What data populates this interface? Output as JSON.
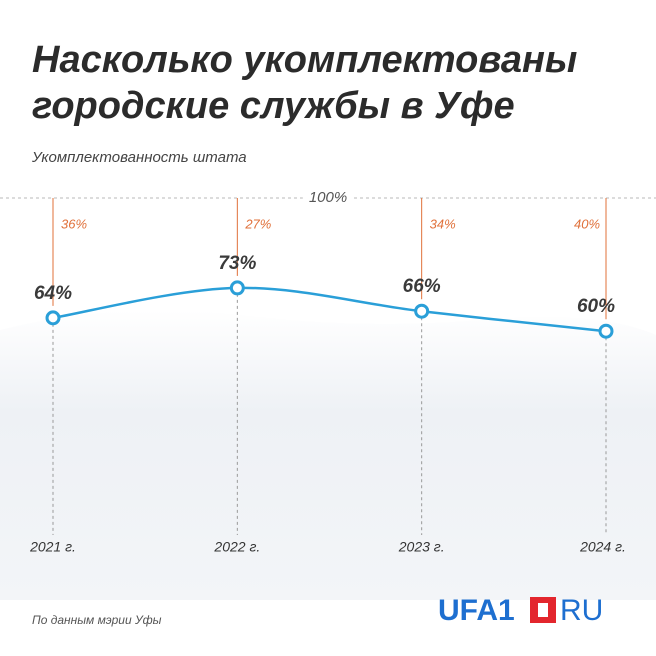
{
  "chart_data": {
    "type": "line",
    "title": [
      "Насколько укомплектованы",
      "городские службы в Уфе"
    ],
    "subtitle": "Укомплектованность штата",
    "categories": [
      "2021 г.",
      "2022 г.",
      "2023 г.",
      "2024 г."
    ],
    "series": [
      {
        "color": "#2a9fd8",
        "values": [
          64,
          73,
          66,
          60
        ],
        "value_labels": [
          "64%",
          "73%",
          "66%",
          "60%"
        ]
      }
    ],
    "gaps": {
      "color": "#e0703a",
      "values": [
        36,
        27,
        34,
        40
      ],
      "value_labels": [
        "36%",
        "27%",
        "34%",
        "40%"
      ]
    },
    "ref_line": {
      "value": 100,
      "label": "100%"
    },
    "ylim": [
      0,
      100
    ],
    "source": "По данным мэрии Уфы",
    "logo": {
      "left": "UFA1",
      "right": "RU"
    }
  }
}
